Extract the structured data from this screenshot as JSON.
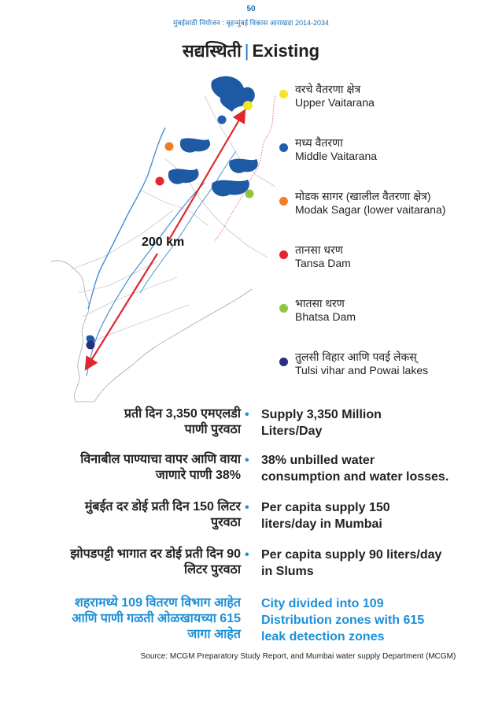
{
  "header": {
    "page_number": "50",
    "subtitle": "मुंबईसाठी नियोजन : बृहन्मुंबई विकास आराखडा 2014-2034",
    "title_marathi": "सद्यस्थिती",
    "title_english": "Existing"
  },
  "map": {
    "distance_label": "200 km"
  },
  "legend": [
    {
      "marathi": "वरचे वैतरणा क्षेत्र",
      "english": "Upper Vaitarana",
      "color": "#f4e42a"
    },
    {
      "marathi": "मध्य वैतरणा",
      "english": "Middle Vaitarana",
      "color": "#1f5fae"
    },
    {
      "marathi": "मोडक सागर (खालील वैतरणा क्षेत्र)",
      "english": "Modak Sagar (lower vaitarana)",
      "color": "#f07d23"
    },
    {
      "marathi": "तानसा धरण",
      "english": "Tansa Dam",
      "color": "#e2262e"
    },
    {
      "marathi": "भातसा धरण",
      "english": "Bhatsa Dam",
      "color": "#8dc63f"
    },
    {
      "marathi": "तुलसी विहार आणि पवई लेकस्",
      "english": "Tulsi vihar and Powai lakes",
      "color": "#2b2f7a"
    }
  ],
  "facts": [
    {
      "marathi_1": "प्रती दिन 3,350 एमएलडी",
      "marathi_2": "पाणी पुरवठा",
      "english_1": "Supply 3,350 Million",
      "english_2": "Liters/Day"
    },
    {
      "marathi_1": "विनाबील पाण्याचा वापर आणि वाया",
      "marathi_2": "जाणारे पाणी 38%",
      "english_1": "38% unbilled water",
      "english_2": "consumption and water losses."
    },
    {
      "marathi_1": "मुंबईत दर डोई प्रती दिन 150 लिटर",
      "marathi_2": "पुरवठा",
      "english_1": "Per capita supply 150",
      "english_2": "liters/day in Mumbai"
    },
    {
      "marathi_1": "झोपडपट्टी भागात दर डोई प्रती दिन 90",
      "marathi_2": "लिटर पुरवठा",
      "english_1": "Per capita supply 90 liters/day",
      "english_2": "in Slums"
    },
    {
      "marathi_1": "शहरामध्ये 109 वितरण विभाग आहेत",
      "marathi_2": "आणि पाणी गळती ओळखायच्या 615",
      "marathi_3": "जागा आहेत",
      "english_1": "City divided into 109",
      "english_2": "Distribution zones with 615",
      "english_3": "leak detection zones"
    }
  ],
  "source": "Source: MCGM Preparatory Study Report, and Mumbai water supply Department (MCGM)"
}
